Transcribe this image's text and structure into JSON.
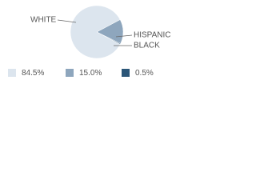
{
  "chart_data": {
    "type": "pie",
    "categories": [
      "WHITE",
      "HISPANIC",
      "BLACK"
    ],
    "values": [
      84.5,
      15.0,
      0.5
    ],
    "value_labels": [
      "84.5%",
      "15.0%",
      "0.5%"
    ],
    "colors": [
      "#dce5ee",
      "#8ea6bd",
      "#2b5678"
    ]
  }
}
